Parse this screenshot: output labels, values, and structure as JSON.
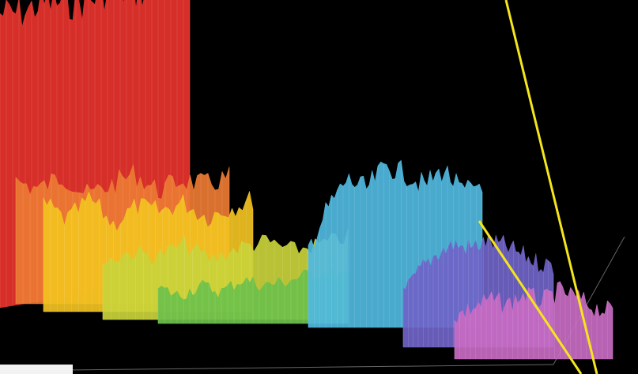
{
  "chart_data": {
    "type": "area",
    "title": "",
    "xlabel": "",
    "ylabel": "",
    "grid": false,
    "legend": "none",
    "series": [
      {
        "color": "#e8322b",
        "values": [
          0.98,
          0.97,
          0.99,
          0.98,
          0.97,
          0.99,
          0.98,
          0.97,
          0.99,
          0.98
        ]
      },
      {
        "color": "#ec7a32",
        "values": [
          0.62,
          0.58,
          0.65,
          0.55,
          0.6,
          0.66,
          0.57,
          0.63,
          0.6,
          0.64
        ]
      },
      {
        "color": "#f2c21f",
        "values": [
          0.6,
          0.5,
          0.62,
          0.48,
          0.58,
          0.55,
          0.6,
          0.52,
          0.57,
          0.62
        ]
      },
      {
        "color": "#c9d33a",
        "values": [
          0.38,
          0.45,
          0.42,
          0.5,
          0.4,
          0.48,
          0.52,
          0.46,
          0.5,
          0.55
        ]
      },
      {
        "color": "#6cc04a",
        "values": [
          0.28,
          0.22,
          0.3,
          0.25,
          0.35,
          0.3,
          0.33,
          0.38,
          0.4,
          0.36
        ]
      },
      {
        "color": "#4fb8e0",
        "values": [
          0.4,
          0.6,
          0.75,
          0.7,
          0.82,
          0.78,
          0.72,
          0.8,
          0.68,
          0.74
        ]
      },
      {
        "color": "#6f64c8",
        "values": [
          0.3,
          0.45,
          0.55,
          0.6,
          0.58,
          0.62,
          0.6,
          0.55,
          0.5,
          0.48
        ]
      },
      {
        "color": "#c86ac2",
        "values": [
          0.25,
          0.3,
          0.35,
          0.32,
          0.38,
          0.34,
          0.4,
          0.36,
          0.3,
          0.28
        ]
      }
    ]
  },
  "overlay": {
    "line_color": "#f5e51c"
  },
  "axis_colors": {
    "axis": "#666666",
    "ticks": "#aaaaaa"
  }
}
